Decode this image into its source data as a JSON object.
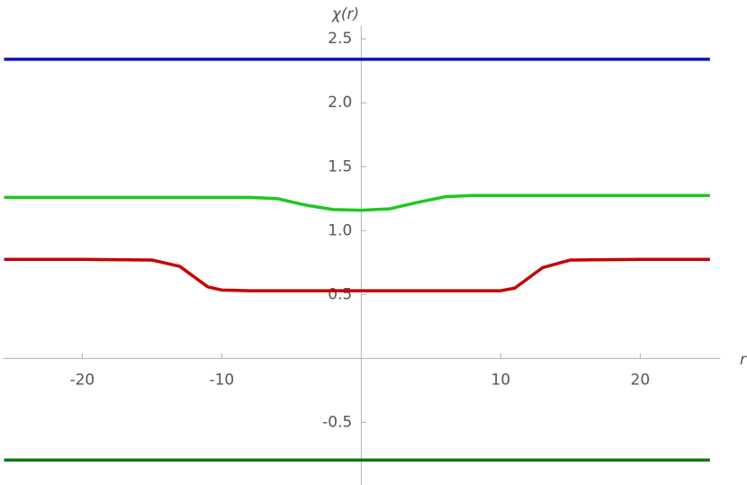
{
  "chart_data": {
    "type": "line",
    "x_label": "r",
    "y_label": "χ(r)",
    "x": [
      -25.6,
      -20,
      -15,
      -13,
      -12,
      -11,
      -10,
      -8,
      -6,
      -4,
      -2,
      0,
      2,
      4,
      6,
      8,
      10,
      11,
      12,
      13,
      15,
      20,
      25
    ],
    "series": [
      {
        "color": "#0a14b4",
        "values": [
          2.34,
          2.34,
          2.34,
          2.34,
          2.34,
          2.34,
          2.34,
          2.34,
          2.34,
          2.34,
          2.34,
          2.34,
          2.34,
          2.34,
          2.34,
          2.34,
          2.34,
          2.34,
          2.34,
          2.34,
          2.34,
          2.34,
          2.34
        ]
      },
      {
        "color": "#1ec81e",
        "values": [
          1.26,
          1.26,
          1.26,
          1.26,
          1.26,
          1.26,
          1.26,
          1.26,
          1.25,
          1.2,
          1.165,
          1.16,
          1.17,
          1.22,
          1.265,
          1.275,
          1.275,
          1.275,
          1.275,
          1.275,
          1.275,
          1.275,
          1.275
        ]
      },
      {
        "color": "#c80000",
        "values": [
          0.775,
          0.775,
          0.77,
          0.72,
          0.64,
          0.56,
          0.535,
          0.53,
          0.53,
          0.53,
          0.53,
          0.53,
          0.53,
          0.53,
          0.53,
          0.53,
          0.53,
          0.55,
          0.63,
          0.71,
          0.77,
          0.775,
          0.775
        ]
      },
      {
        "color": "#147814",
        "values": [
          -0.795,
          -0.795,
          -0.795,
          -0.795,
          -0.795,
          -0.795,
          -0.795,
          -0.795,
          -0.795,
          -0.795,
          -0.795,
          -0.795,
          -0.795,
          -0.795,
          -0.795,
          -0.795,
          -0.795,
          -0.795,
          -0.795,
          -0.795,
          -0.795,
          -0.795,
          -0.795
        ]
      }
    ],
    "xlim": [
      -25.7,
      25.7
    ],
    "ylim": [
      -0.99,
      2.6
    ],
    "xticks": [
      -20,
      -10,
      10,
      20
    ],
    "yticks": [
      -0.5,
      0.5,
      {
        "value": 1,
        "label": "1.0"
      },
      1.5,
      {
        "value": 2,
        "label": "2.0"
      },
      2.5
    ],
    "grid": false
  }
}
